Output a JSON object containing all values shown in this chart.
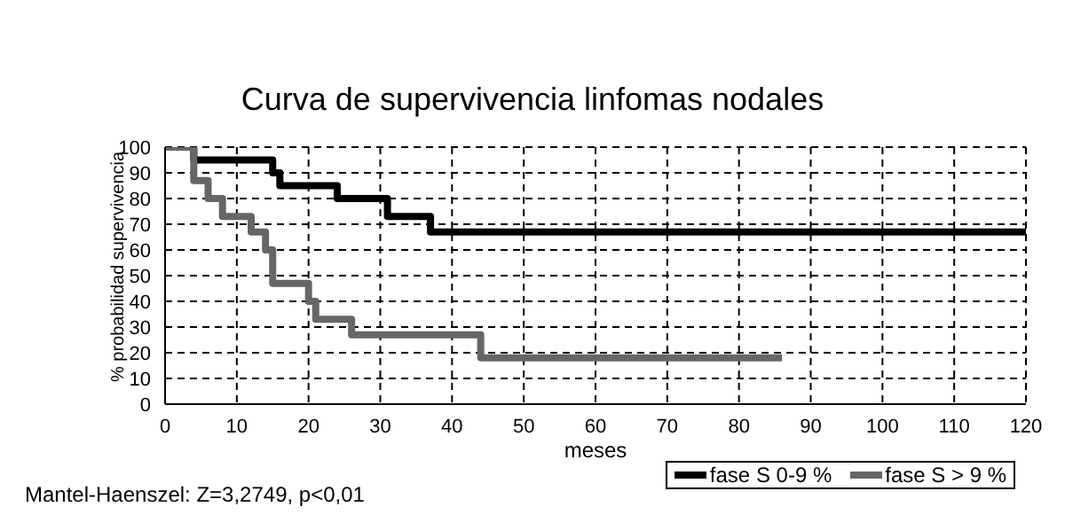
{
  "chart_data": {
    "type": "step",
    "title": "Curva de supervivencia linfomas nodales",
    "xlabel": "meses",
    "ylabel": "% probabilidad supervivencia",
    "series": [
      {
        "name": "fase S 0-9 %",
        "color": "#000000",
        "x": [
          0,
          4,
          15,
          16,
          24,
          31,
          37,
          120
        ],
        "values": [
          100,
          95,
          90,
          85,
          80,
          73,
          67,
          67
        ]
      },
      {
        "name": "fase S > 9 %",
        "color": "#666666",
        "x": [
          0,
          4,
          6,
          8,
          12,
          14,
          15,
          20,
          21,
          26,
          44,
          86
        ],
        "values": [
          100,
          87,
          80,
          73,
          67,
          60,
          47,
          40,
          33,
          27,
          18,
          18
        ]
      }
    ],
    "xlim": [
      0,
      120
    ],
    "xticks": [
      0,
      10,
      20,
      30,
      40,
      50,
      60,
      70,
      80,
      90,
      100,
      110,
      120
    ],
    "ylim": [
      0,
      100
    ],
    "yticks": [
      0,
      10,
      20,
      30,
      40,
      50,
      60,
      70,
      80,
      90,
      100
    ],
    "grid": true,
    "legend": "bottom right",
    "line_style": "solid",
    "marker": "none",
    "annotations": [
      "Mantel-Haenszel: Z=3,2749, p<0,01"
    ]
  }
}
